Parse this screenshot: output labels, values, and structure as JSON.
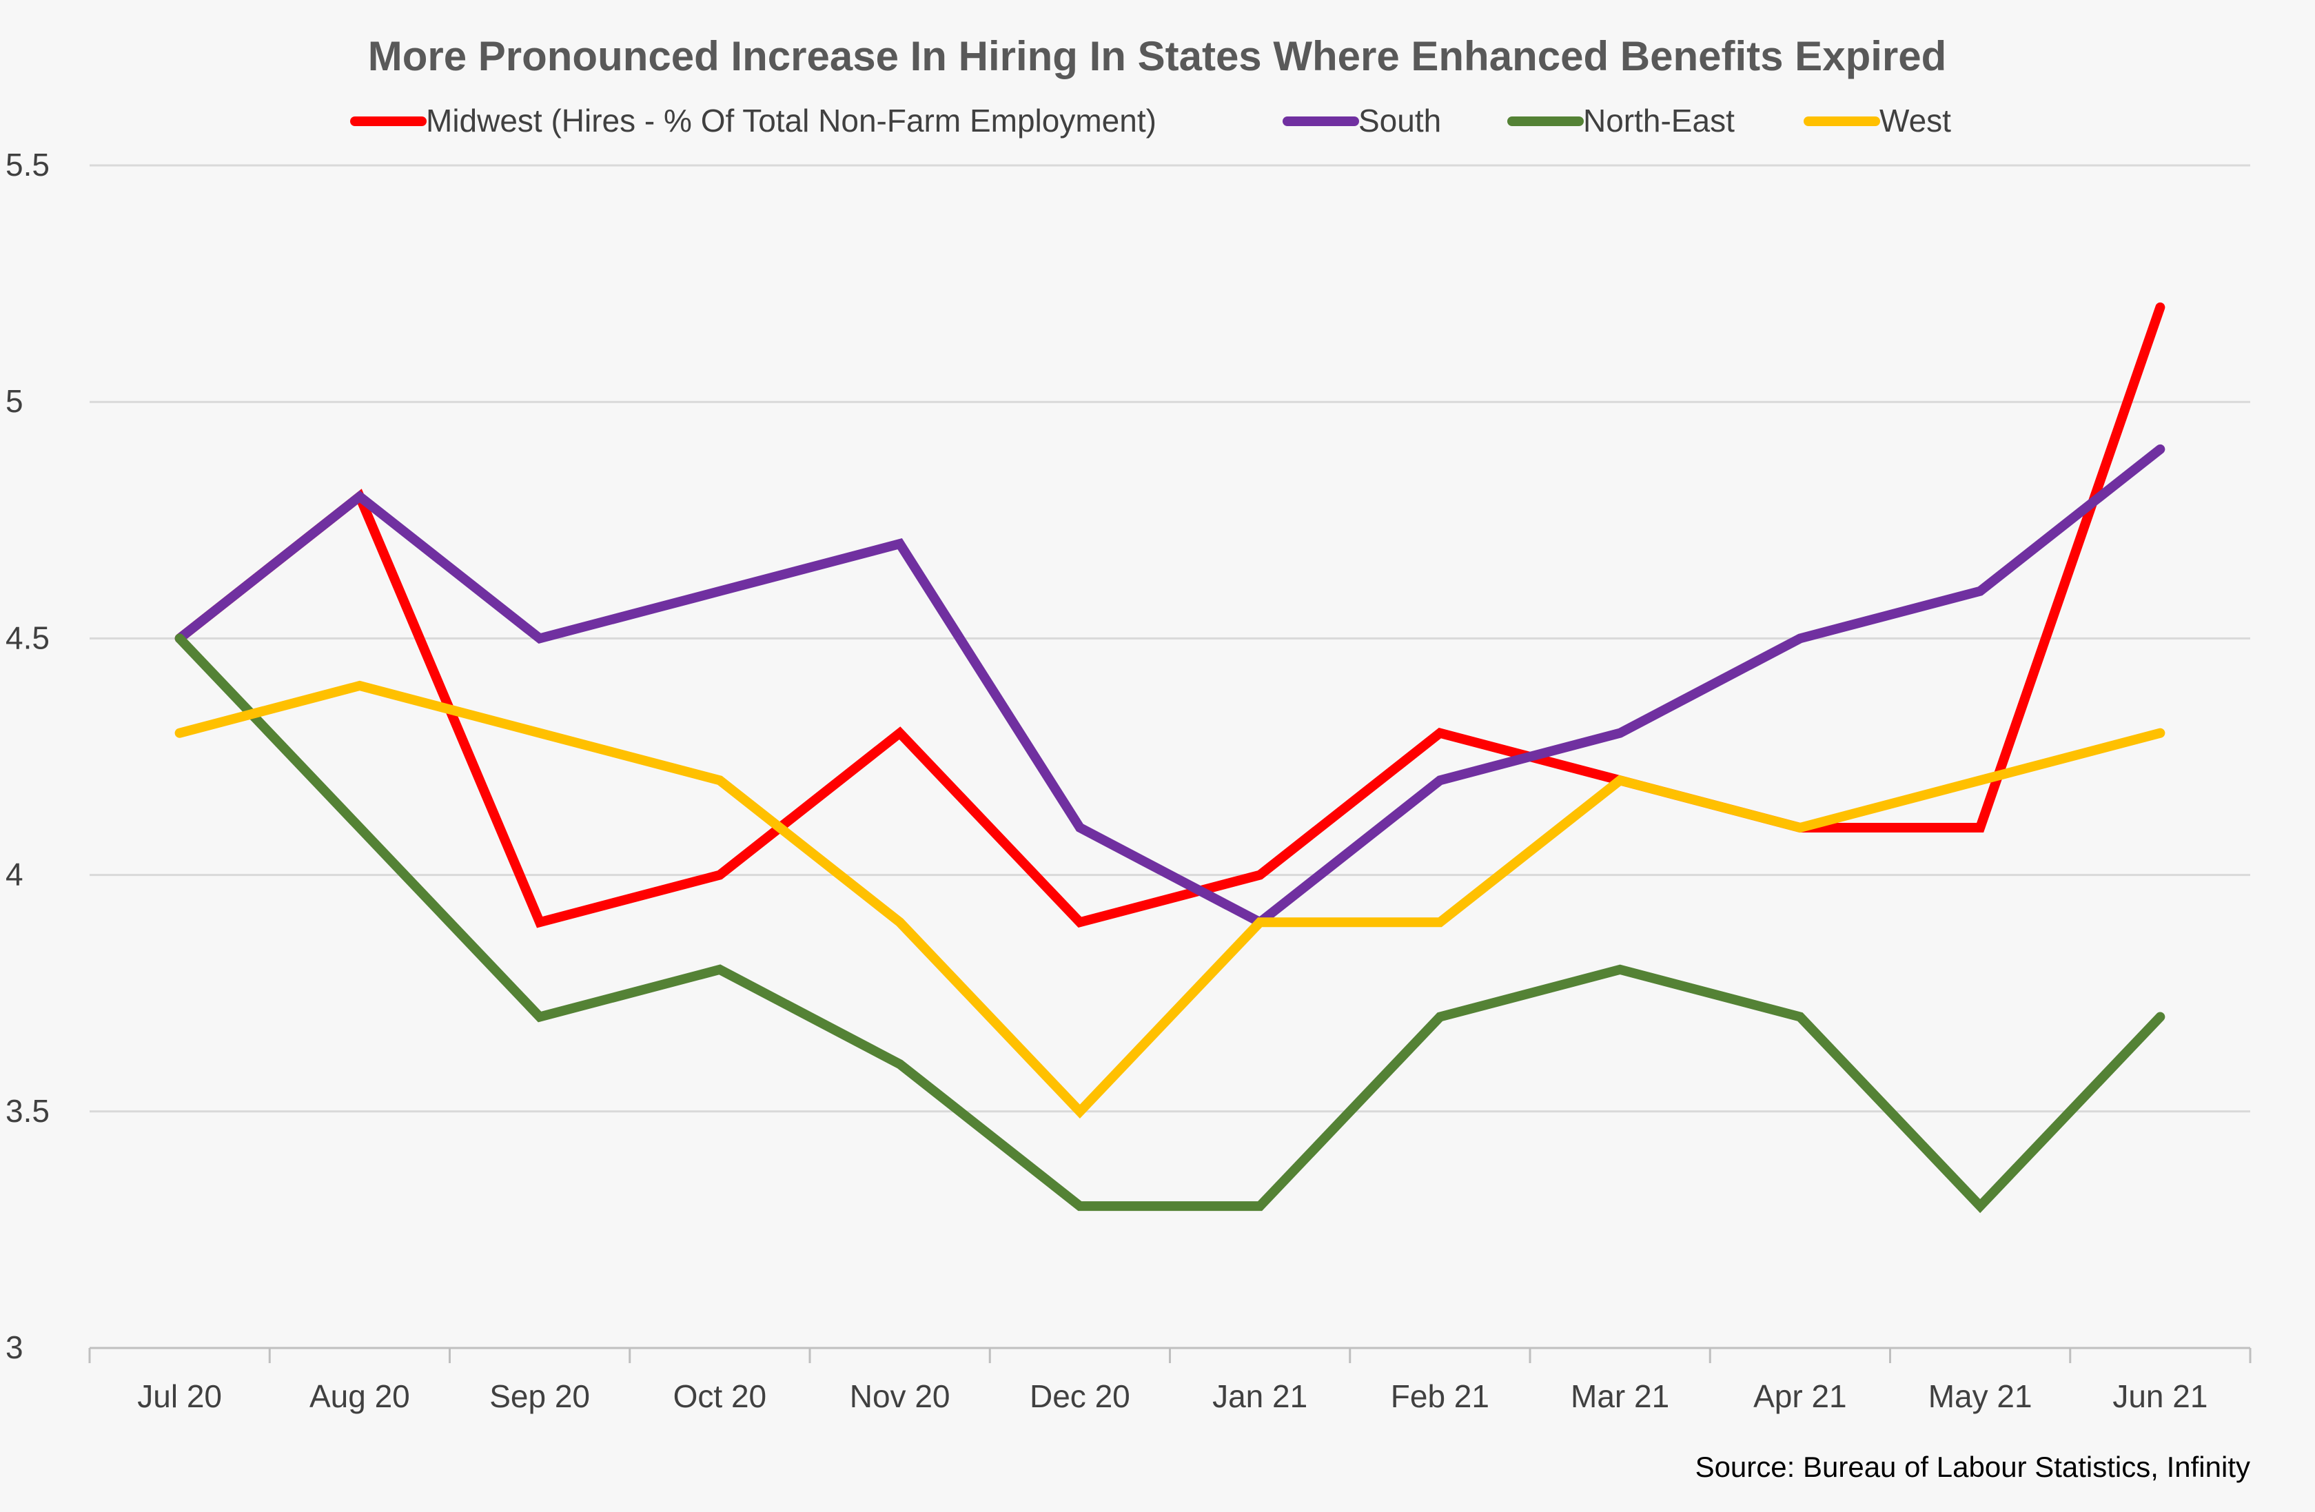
{
  "chart_data": {
    "type": "line",
    "title": "More Pronounced Increase In Hiring In States Where Enhanced Benefits Expired",
    "categories": [
      "Jul 20",
      "Aug 20",
      "Sep 20",
      "Oct 20",
      "Nov 20",
      "Dec 20",
      "Jan 21",
      "Feb 21",
      "Mar 21",
      "Apr 21",
      "May 21",
      "Jun 21"
    ],
    "series": [
      {
        "name": "Midwest (Hires - % Of Total Non-Farm Employment)",
        "color": "#ff0000",
        "values": [
          4.5,
          4.8,
          3.9,
          4.0,
          4.3,
          3.9,
          4.0,
          4.3,
          4.2,
          4.1,
          4.1,
          5.2
        ]
      },
      {
        "name": "South",
        "color": "#7030a0",
        "values": [
          4.5,
          4.8,
          4.5,
          4.6,
          4.7,
          4.1,
          3.9,
          4.2,
          4.3,
          4.5,
          4.6,
          4.9
        ]
      },
      {
        "name": "North-East",
        "color": "#548235",
        "values": [
          4.5,
          4.1,
          3.7,
          3.8,
          3.6,
          3.3,
          3.3,
          3.7,
          3.8,
          3.7,
          3.3,
          3.7
        ]
      },
      {
        "name": "West",
        "color": "#ffc000",
        "values": [
          4.3,
          4.4,
          4.3,
          4.2,
          3.9,
          3.5,
          3.9,
          3.9,
          4.2,
          4.1,
          4.2,
          4.3
        ]
      }
    ],
    "y_ticks": [
      "3",
      "3.5",
      "4",
      "4.5",
      "5",
      "5.5"
    ],
    "ylim": [
      3,
      5.5
    ],
    "grid": true,
    "legend_position": "top",
    "source": "Source: Bureau of Labour Statistics, Infinity"
  }
}
